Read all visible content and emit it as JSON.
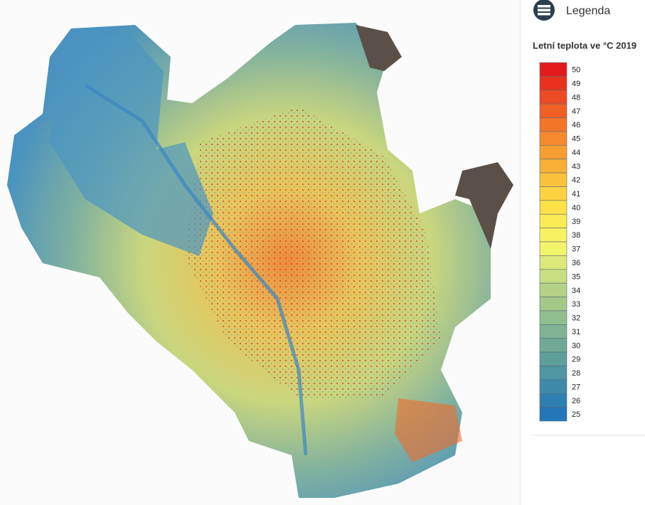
{
  "legend": {
    "title": "Legenda",
    "subtitle": "Letní teplota ve °C 2019",
    "items": [
      {
        "value": 50,
        "color": "#e41a1c"
      },
      {
        "value": 49,
        "color": "#e8321e"
      },
      {
        "value": 48,
        "color": "#ec4a22"
      },
      {
        "value": 47,
        "color": "#f06024"
      },
      {
        "value": 46,
        "color": "#f37528"
      },
      {
        "value": 45,
        "color": "#f58a2c"
      },
      {
        "value": 44,
        "color": "#f79e32"
      },
      {
        "value": 43,
        "color": "#f9b037"
      },
      {
        "value": 42,
        "color": "#fbc23b"
      },
      {
        "value": 41,
        "color": "#fcd240"
      },
      {
        "value": 40,
        "color": "#fde146"
      },
      {
        "value": 39,
        "color": "#fbeb55"
      },
      {
        "value": 38,
        "color": "#f8f262"
      },
      {
        "value": 37,
        "color": "#f2f46a"
      },
      {
        "value": 36,
        "color": "#dde87a"
      },
      {
        "value": 35,
        "color": "#c9dd82"
      },
      {
        "value": 34,
        "color": "#b5d286"
      },
      {
        "value": 33,
        "color": "#a3c88a"
      },
      {
        "value": 32,
        "color": "#91be8e"
      },
      {
        "value": 31,
        "color": "#80b391"
      },
      {
        "value": 30,
        "color": "#6fa995"
      },
      {
        "value": 29,
        "color": "#5f9f9b"
      },
      {
        "value": 28,
        "color": "#4f95a2"
      },
      {
        "value": 27,
        "color": "#3f8aaa"
      },
      {
        "value": 26,
        "color": "#2f80b2"
      },
      {
        "value": 25,
        "color": "#2476b9"
      }
    ]
  }
}
